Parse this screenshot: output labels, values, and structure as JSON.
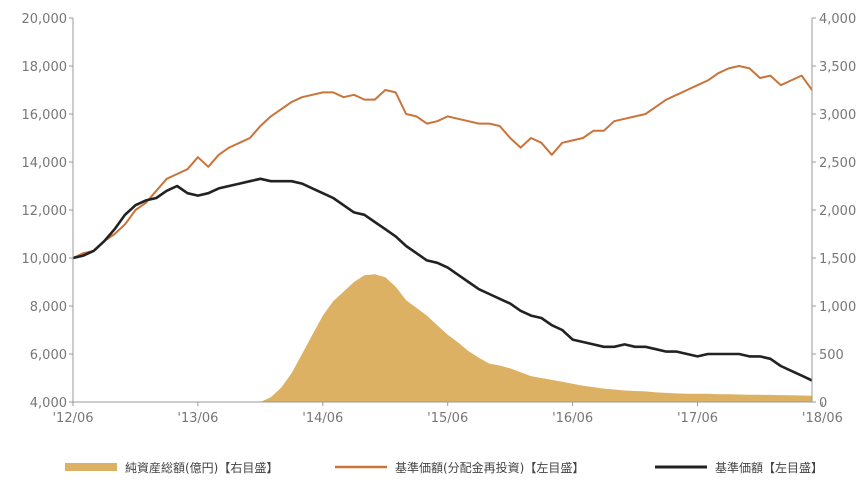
{
  "chart_data": {
    "type": "line",
    "title": "",
    "xlabel": "",
    "ylabel": "",
    "grid": false,
    "legend_position": "bottom",
    "x_ticks": [
      "'12/06",
      "'13/06",
      "'14/06",
      "'15/06",
      "'16/06",
      "'17/06",
      "'18/06"
    ],
    "x_range": [
      0,
      71
    ],
    "y_left": {
      "range": [
        4000,
        20000
      ],
      "ticks": [
        "4,000",
        "6,000",
        "8,000",
        "10,000",
        "12,000",
        "14,000",
        "16,000",
        "18,000",
        "20,000"
      ]
    },
    "y_right": {
      "range": [
        0,
        4000
      ],
      "ticks": [
        "0",
        "500",
        "1,000",
        "1,500",
        "2,000",
        "2,500",
        "3,000",
        "3,500",
        "4,000"
      ]
    },
    "months": [
      "2012-06",
      "2012-07",
      "2012-08",
      "2012-09",
      "2012-10",
      "2012-11",
      "2012-12",
      "2013-01",
      "2013-02",
      "2013-03",
      "2013-04",
      "2013-05",
      "2013-06",
      "2013-07",
      "2013-08",
      "2013-09",
      "2013-10",
      "2013-11",
      "2013-12",
      "2014-01",
      "2014-02",
      "2014-03",
      "2014-04",
      "2014-05",
      "2014-06",
      "2014-07",
      "2014-08",
      "2014-09",
      "2014-10",
      "2014-11",
      "2014-12",
      "2015-01",
      "2015-02",
      "2015-03",
      "2015-04",
      "2015-05",
      "2015-06",
      "2015-07",
      "2015-08",
      "2015-09",
      "2015-10",
      "2015-11",
      "2015-12",
      "2016-01",
      "2016-02",
      "2016-03",
      "2016-04",
      "2016-05",
      "2016-06",
      "2016-07",
      "2016-08",
      "2016-09",
      "2016-10",
      "2016-11",
      "2016-12",
      "2017-01",
      "2017-02",
      "2017-03",
      "2017-04",
      "2017-05",
      "2017-06",
      "2017-07",
      "2017-08",
      "2017-09",
      "2017-10",
      "2017-11",
      "2017-12",
      "2018-01",
      "2018-02",
      "2018-03",
      "2018-04",
      "2018-05"
    ],
    "series": [
      {
        "name": "純資産総額(億円)【右目盛】",
        "axis": "right",
        "kind": "area",
        "color": "#dcb164",
        "values": [
          0,
          0,
          0,
          0,
          0,
          0,
          0,
          0,
          0,
          0,
          0,
          0,
          0,
          0,
          0,
          0,
          0,
          0,
          0,
          50,
          150,
          300,
          500,
          700,
          900,
          1050,
          1150,
          1250,
          1320,
          1330,
          1300,
          1200,
          1060,
          980,
          900,
          800,
          700,
          620,
          530,
          460,
          400,
          380,
          350,
          310,
          270,
          250,
          230,
          210,
          190,
          170,
          155,
          140,
          130,
          120,
          115,
          110,
          100,
          95,
          90,
          85,
          85,
          85,
          80,
          80,
          78,
          76,
          75,
          74,
          72,
          70,
          68,
          65
        ]
      },
      {
        "name": "基準価額(分配金再投資)【左目盛】",
        "axis": "left",
        "kind": "line",
        "color": "#c8743a",
        "values": [
          10000,
          10200,
          10300,
          10700,
          11000,
          11400,
          12000,
          12300,
          12800,
          13300,
          13500,
          13700,
          14200,
          13800,
          14300,
          14600,
          14800,
          15000,
          15500,
          15900,
          16200,
          16500,
          16700,
          16800,
          16900,
          16900,
          16700,
          16800,
          16600,
          16600,
          17000,
          16900,
          16000,
          15900,
          15600,
          15700,
          15900,
          15800,
          15700,
          15600,
          15600,
          15500,
          15000,
          14600,
          15000,
          14800,
          14300,
          14800,
          14900,
          15000,
          15300,
          15300,
          15700,
          15800,
          15900,
          16000,
          16300,
          16600,
          16800,
          17000,
          17200,
          17400,
          17700,
          17900,
          18000,
          17900,
          17500,
          17600,
          17200,
          17400,
          17600,
          17000
        ]
      },
      {
        "name": "基準価額【左目盛】",
        "axis": "left",
        "kind": "line",
        "color": "#222222",
        "values": [
          10000,
          10100,
          10300,
          10700,
          11200,
          11800,
          12200,
          12400,
          12500,
          12800,
          13000,
          12700,
          12600,
          12700,
          12900,
          13000,
          13100,
          13200,
          13300,
          13200,
          13200,
          13200,
          13100,
          12900,
          12700,
          12500,
          12200,
          11900,
          11800,
          11500,
          11200,
          10900,
          10500,
          10200,
          9900,
          9800,
          9600,
          9300,
          9000,
          8700,
          8500,
          8300,
          8100,
          7800,
          7600,
          7500,
          7200,
          7000,
          6600,
          6500,
          6400,
          6300,
          6300,
          6400,
          6300,
          6300,
          6200,
          6100,
          6100,
          6000,
          5900,
          6000,
          6000,
          6000,
          6000,
          5900,
          5900,
          5800,
          5500,
          5300,
          5100,
          4900
        ]
      }
    ]
  }
}
